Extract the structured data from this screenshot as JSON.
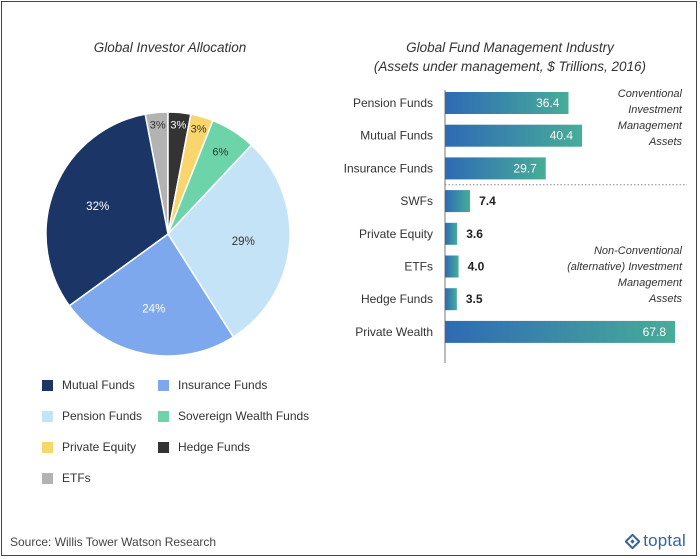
{
  "source": "Source: Willis Tower Watson Research",
  "brand": {
    "name": "toptal",
    "color": "#3863a0"
  },
  "chart_data": [
    {
      "type": "pie",
      "title": "Global Investor Allocation",
      "slices": [
        {
          "label": "Mutual Funds",
          "value": 32,
          "display": "32%",
          "color": "#1a3566"
        },
        {
          "label": "Insurance Funds",
          "value": 24,
          "display": "24%",
          "color": "#7ea8ee"
        },
        {
          "label": "Pension Funds",
          "value": 29,
          "display": "29%",
          "color": "#c5e3f7"
        },
        {
          "label": "Sovereign Wealth Funds",
          "value": 6,
          "display": "6%",
          "color": "#6cd4a8"
        },
        {
          "label": "Private Equity",
          "value": 3,
          "display": "3%",
          "color": "#f8d56d"
        },
        {
          "label": "Hedge Funds",
          "value": 3,
          "display": "3%",
          "color": "#333333"
        },
        {
          "label": "ETFs",
          "value": 3,
          "display": "3%",
          "color": "#b3b3b3"
        }
      ],
      "slice_order": [
        "ETFs",
        "Hedge Funds",
        "Private Equity",
        "Sovereign Wealth Funds",
        "Pension Funds",
        "Insurance Funds",
        "Mutual Funds"
      ],
      "legend_order": [
        "Mutual Funds",
        "Insurance Funds",
        "Pension Funds",
        "Sovereign Wealth Funds",
        "Private Equity",
        "Hedge Funds",
        "ETFs"
      ],
      "legend_position": "bottom"
    },
    {
      "type": "bar",
      "orientation": "horizontal",
      "title": "Global Fund Management Industry",
      "subtitle": "(Assets under management, $ Trillions, 2016)",
      "categories": [
        "Pension Funds",
        "Mutual Funds",
        "Insurance Funds",
        "SWFs",
        "Private Equity",
        "ETFs",
        "Hedge Funds",
        "Private Wealth"
      ],
      "values": [
        36.4,
        40.4,
        29.7,
        7.4,
        3.6,
        4.0,
        3.5,
        67.8
      ],
      "value_labels": [
        "36.4",
        "40.4",
        "29.7",
        "7.4",
        "3.6",
        "4.0",
        "3.5",
        "67.8"
      ],
      "xlim": [
        0,
        67.8
      ],
      "gradient": [
        "#2e6ab5",
        "#47ad98"
      ],
      "groups": [
        {
          "label": "Conventional Investment Management Assets",
          "lines": [
            "Conventional",
            "Investment",
            "Management",
            "Assets"
          ],
          "categories": [
            "Pension Funds",
            "Mutual Funds",
            "Insurance Funds"
          ]
        },
        {
          "label": "Non-Conventional (alternative) Investment Management Assets",
          "lines": [
            "Non-Conventional",
            "(alternative) Investment",
            "Management",
            "Assets"
          ],
          "categories": [
            "SWFs",
            "Private Equity",
            "ETFs",
            "Hedge Funds",
            "Private Wealth"
          ]
        }
      ]
    }
  ]
}
